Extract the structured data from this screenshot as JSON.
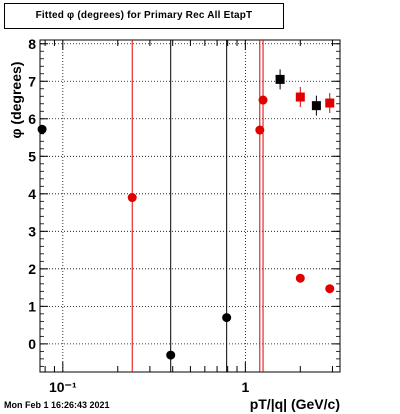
{
  "title": "Fitted φ (degrees) for Primary Rec All EtapT",
  "timestamp": "Mon Feb  1 16:26:43 2021",
  "chart_data": {
    "type": "scatter",
    "title": "Fitted φ (degrees) for Primary Rec All EtapT",
    "xlabel": "pT/|q| (GeV/c)",
    "ylabel": "φ (degrees)",
    "xscale": "log",
    "xlim": [
      0.075,
      3.3
    ],
    "ylim": [
      -0.75,
      8.1
    ],
    "grid": true,
    "x_tick_labels": [
      {
        "value": 0.1,
        "label": "10⁻¹"
      },
      {
        "value": 1,
        "label": "1"
      }
    ],
    "y_ticks": [
      0,
      1,
      2,
      3,
      4,
      5,
      6,
      7,
      8
    ],
    "series": [
      {
        "color": "#e00000",
        "marker": "circle",
        "points": [
          {
            "x": 0.24,
            "y": 3.9
          },
          {
            "x": 1.2,
            "y": 5.7
          },
          {
            "x": 1.25,
            "y": 6.5
          },
          {
            "x": 2.0,
            "y": 1.75
          },
          {
            "x": 2.9,
            "y": 1.47
          }
        ]
      },
      {
        "color": "#000000",
        "marker": "circle",
        "points": [
          {
            "x": 0.077,
            "y": 5.72
          },
          {
            "x": 0.39,
            "y": -0.3
          },
          {
            "x": 0.79,
            "y": 0.7
          }
        ]
      },
      {
        "color": "#e00000",
        "marker": "square",
        "points": [
          {
            "x": 2.0,
            "y": 6.58
          },
          {
            "x": 2.9,
            "y": 6.42
          }
        ]
      },
      {
        "color": "#000000",
        "marker": "square",
        "points": [
          {
            "x": 1.55,
            "y": 7.05
          },
          {
            "x": 2.45,
            "y": 6.35
          }
        ]
      }
    ],
    "vlines": [
      {
        "x": 0.24,
        "color": "#e00000"
      },
      {
        "x": 0.39,
        "color": "#000000"
      },
      {
        "x": 0.79,
        "color": "#000000"
      },
      {
        "x": 1.2,
        "color": "#e00000"
      },
      {
        "x": 1.25,
        "color": "#e00000"
      }
    ]
  }
}
